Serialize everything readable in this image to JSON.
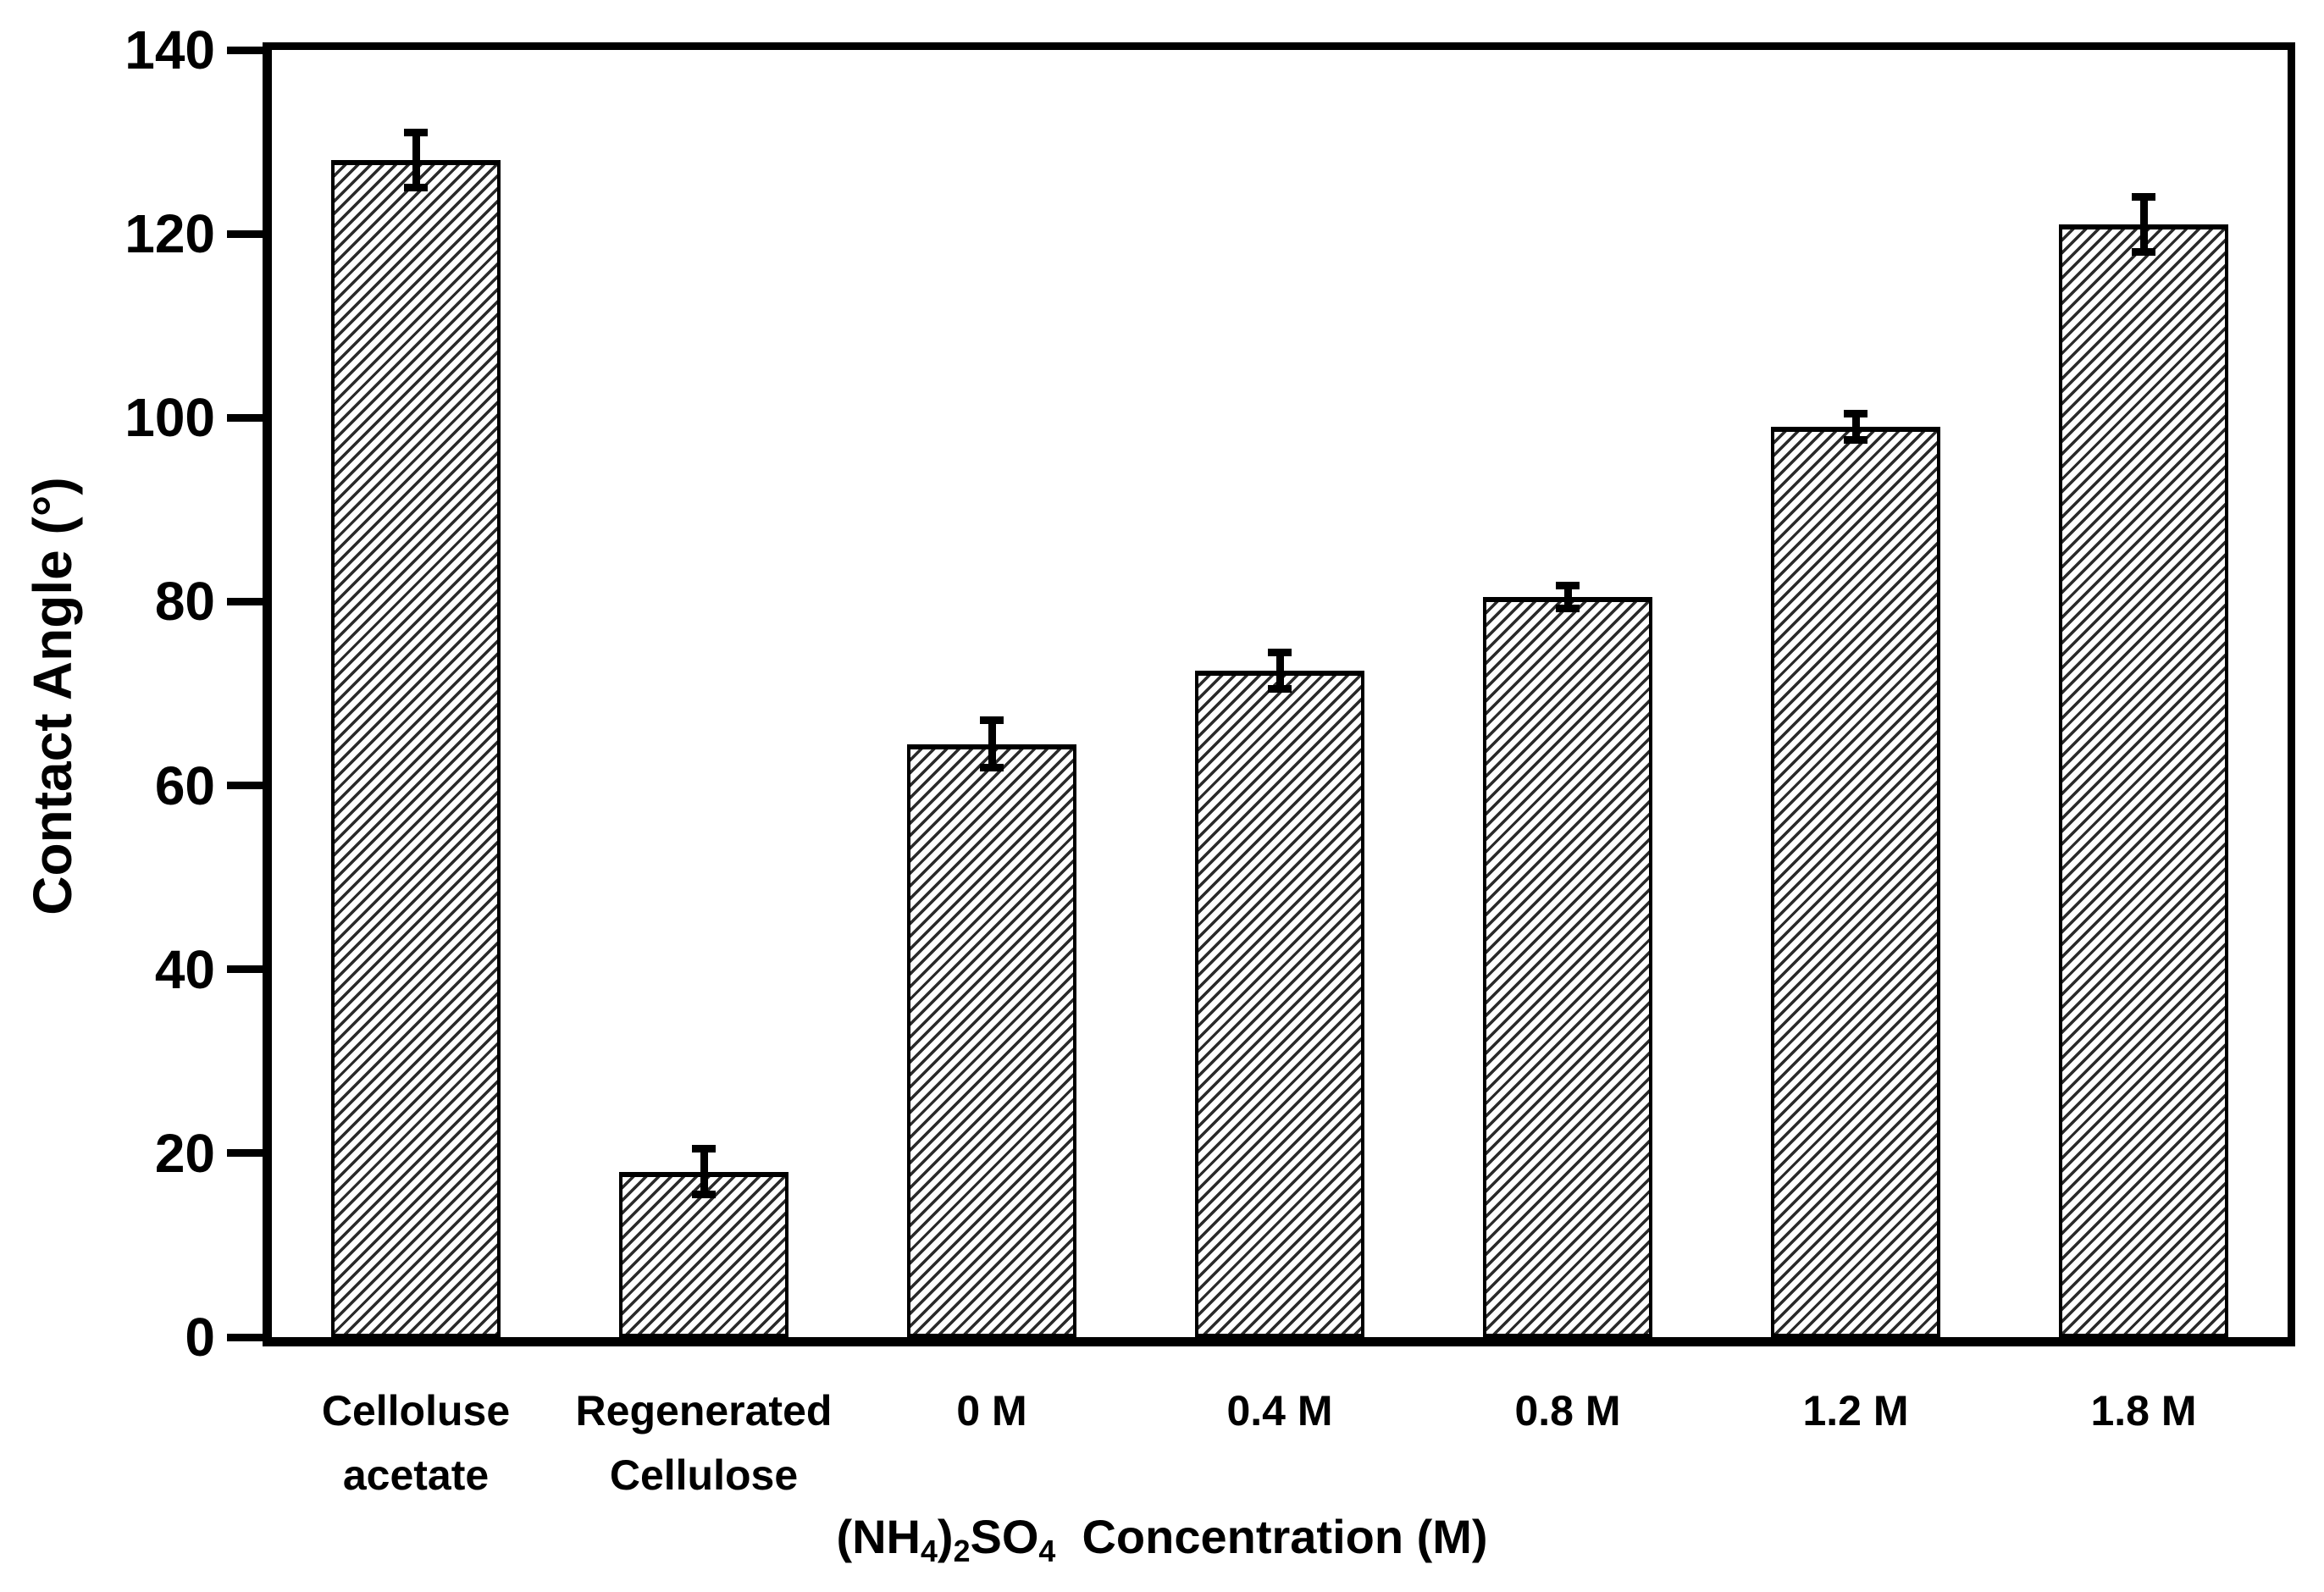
{
  "figure": {
    "background_color": "#ffffff",
    "foreground_color": "#000000"
  },
  "chart_data": {
    "type": "bar",
    "title": "",
    "ylabel": "Contact Angle (°)",
    "xlabel_plain": "(NH4)2SO4  Concentration (M)",
    "xlabel_segments": [
      {
        "text": "(NH"
      },
      {
        "text": "4",
        "sub": true
      },
      {
        "text": ")"
      },
      {
        "text": "2",
        "sub": true
      },
      {
        "text": "SO"
      },
      {
        "text": "4",
        "sub": true
      },
      {
        "text": "  Concentration (M)"
      }
    ],
    "ylim": [
      0,
      140
    ],
    "yticks": [
      0,
      20,
      40,
      60,
      80,
      100,
      120,
      140
    ],
    "grid": false,
    "legend": null,
    "bar_style": {
      "fill_color": "#ffffff",
      "hatch": "diagonal-forward-slash",
      "edge_color": "#000000"
    },
    "categories": [
      "Celloluse acetate",
      "Regenerated Cellulose",
      "0 M",
      "0.4 M",
      "0.8 M",
      "1.2 M",
      "1.8 M"
    ],
    "category_label_lines": [
      [
        "Celloluse",
        "acetate"
      ],
      [
        "Regenerated",
        "Cellulose"
      ],
      [
        "0 M"
      ],
      [
        "0.4 M"
      ],
      [
        "0.8 M"
      ],
      [
        "1.2 M"
      ],
      [
        "1.8 M"
      ]
    ],
    "values": [
      128,
      18,
      64.5,
      72.5,
      80.5,
      99,
      121
    ],
    "errors_plus_minus": [
      3,
      2.5,
      2.6,
      2,
      1.2,
      1.4,
      3
    ]
  }
}
